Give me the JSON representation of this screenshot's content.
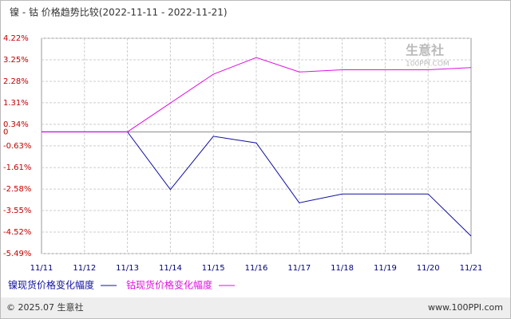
{
  "chart_data": {
    "type": "line",
    "title": "镍 - 钴 价格趋势比较(2022-11-11 - 2022-11-21)",
    "categories": [
      "11/11",
      "11/12",
      "11/13",
      "11/14",
      "11/15",
      "11/16",
      "11/17",
      "11/18",
      "11/19",
      "11/20",
      "11/21"
    ],
    "series": [
      {
        "name": "镍现货价格变化幅度",
        "color": "#1010a0",
        "values": [
          0,
          0,
          0,
          -2.6,
          -0.2,
          -0.5,
          -3.2,
          -2.8,
          -2.8,
          -2.8,
          -4.7
        ]
      },
      {
        "name": "钴现货价格变化幅度",
        "color": "#e010e0",
        "values": [
          0,
          0,
          0,
          1.3,
          2.6,
          3.35,
          2.7,
          2.8,
          2.8,
          2.8,
          2.9
        ]
      }
    ],
    "ylim": [
      -5.49,
      4.22
    ],
    "yticks": [
      {
        "value": 4.22,
        "label": "4.22%"
      },
      {
        "value": 3.25,
        "label": "3.25%"
      },
      {
        "value": 2.28,
        "label": "2.28%"
      },
      {
        "value": 1.31,
        "label": "1.31%"
      },
      {
        "value": 0.34,
        "label": "0.34%"
      },
      0,
      {
        "value": -0.63,
        "label": "-0.63%"
      },
      {
        "value": -1.61,
        "label": "-1.61%"
      },
      {
        "value": -2.58,
        "label": "-2.58%"
      },
      {
        "value": -3.55,
        "label": "-3.55%"
      },
      {
        "value": -4.52,
        "label": "-4.52%"
      },
      {
        "value": -5.49,
        "label": "-5.49%"
      }
    ],
    "grid": true,
    "watermark": [
      "生意社",
      "100PPI.COM"
    ],
    "footer": [
      "© 2025.07 生意社",
      "www.100PPI.com"
    ]
  }
}
